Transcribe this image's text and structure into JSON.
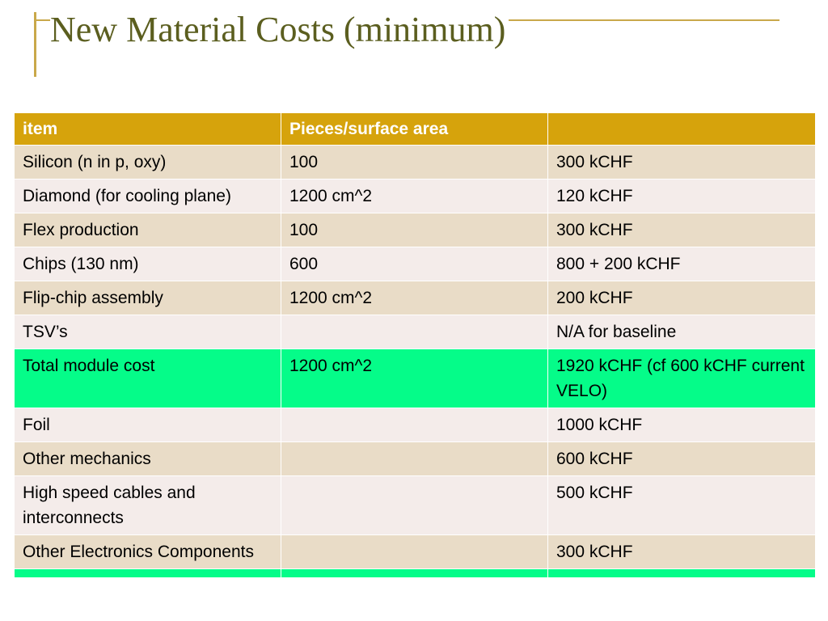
{
  "slide": {
    "title": "New Material Costs (minimum)"
  },
  "table": {
    "headers": [
      "item",
      "Pieces/surface area",
      ""
    ],
    "rows": [
      {
        "cells": [
          "Silicon (n in p, oxy)",
          "100",
          "300 kCHF"
        ],
        "style": "odd"
      },
      {
        "cells": [
          "Diamond (for cooling plane)",
          "1200 cm^2",
          "120 kCHF"
        ],
        "style": "even"
      },
      {
        "cells": [
          "Flex production",
          "100",
          "300 kCHF"
        ],
        "style": "odd"
      },
      {
        "cells": [
          "Chips (130 nm)",
          "600",
          "800 + 200 kCHF"
        ],
        "style": "even"
      },
      {
        "cells": [
          "Flip-chip assembly",
          "1200 cm^2",
          "200  kCHF"
        ],
        "style": "odd"
      },
      {
        "cells": [
          "TSV’s",
          "",
          "N/A for baseline"
        ],
        "style": "even"
      },
      {
        "cells": [
          "Total module cost",
          "1200 cm^2",
          "1920 kCHF (cf 600 kCHF current VELO)"
        ],
        "style": "highlight"
      },
      {
        "cells": [
          "Foil",
          "",
          "1000 kCHF"
        ],
        "style": "even"
      },
      {
        "cells": [
          "Other mechanics",
          "",
          "600 kCHF"
        ],
        "style": "odd"
      },
      {
        "cells": [
          "High speed cables and interconnects",
          "",
          "500 kCHF"
        ],
        "style": "even"
      },
      {
        "cells": [
          "Other Electronics Components",
          "",
          "300 kCHF"
        ],
        "style": "odd"
      },
      {
        "cells": [
          "",
          "",
          ""
        ],
        "style": "highlight"
      }
    ]
  },
  "colors": {
    "accent_line": "#c9a84a",
    "title_text": "#5b5e1f",
    "header_bg": "#d6a30c",
    "row_odd_bg": "#e9dcc7",
    "row_even_bg": "#f4ecea",
    "highlight_bg": "#05fc89"
  }
}
